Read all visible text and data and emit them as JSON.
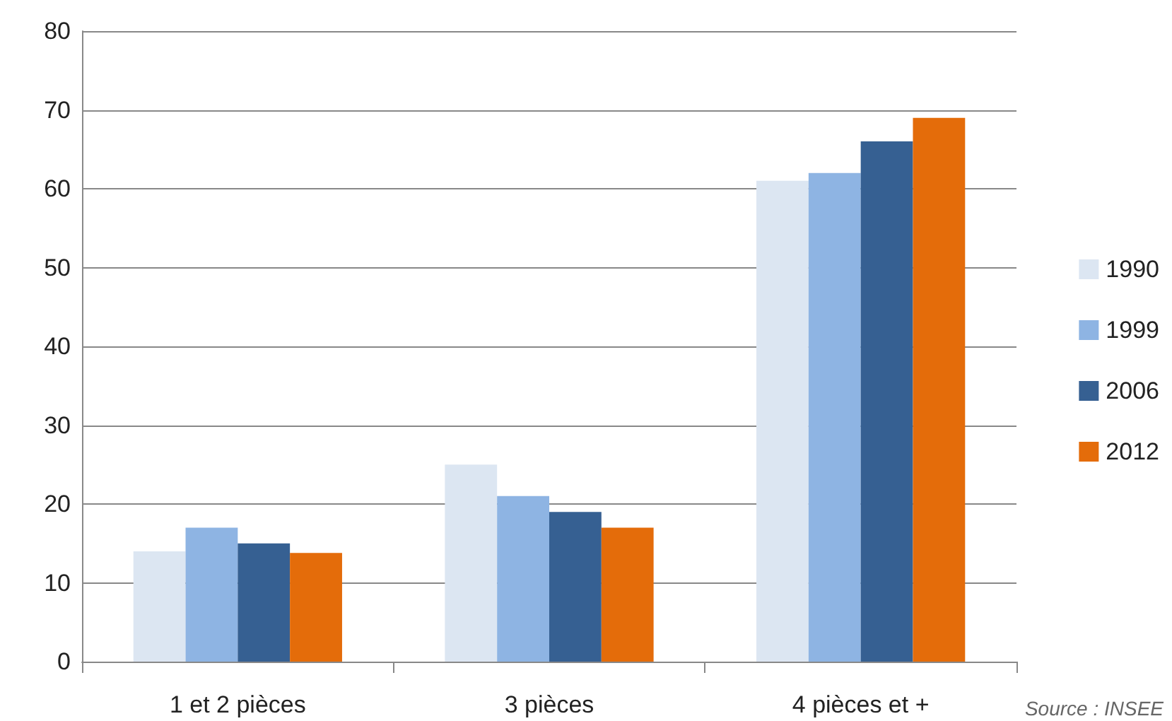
{
  "chart_data": {
    "type": "bar",
    "categories": [
      "1 et 2 pièces",
      "3 pièces",
      "4 pièces et +"
    ],
    "series": [
      {
        "name": "1990",
        "color": "#dce6f2",
        "values": [
          14,
          25,
          61
        ]
      },
      {
        "name": "1999",
        "color": "#8eb4e3",
        "values": [
          17,
          21,
          62
        ]
      },
      {
        "name": "2006",
        "color": "#366092",
        "values": [
          15,
          19,
          66
        ]
      },
      {
        "name": "2012",
        "color": "#e46c0a",
        "values": [
          13.8,
          17,
          69
        ]
      }
    ],
    "ylim": [
      0,
      80
    ],
    "yticks": [
      0,
      10,
      20,
      30,
      40,
      50,
      60,
      70,
      80
    ],
    "grid": "y",
    "legend": "right",
    "annotations": [
      "Source : INSEE"
    ]
  }
}
